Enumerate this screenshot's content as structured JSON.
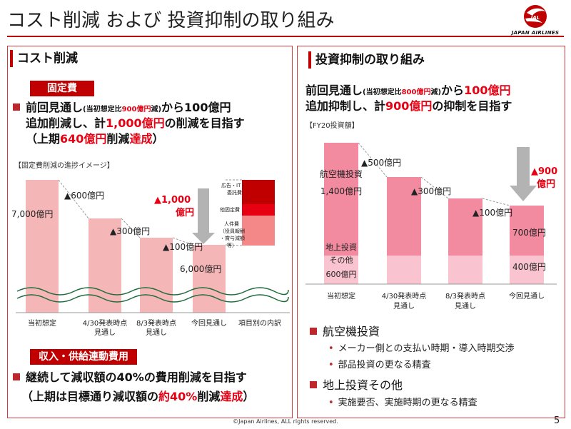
{
  "title": "コスト削減 および 投資抑制の取り組み",
  "logo": {
    "text": "JAPAN AIRLINES",
    "mark": "JAL",
    "color": "#c00000"
  },
  "left": {
    "heading": "コスト削減",
    "fixed_tag": "固定費",
    "line1": {
      "a": "前回見通し",
      "b": "(当初想定比",
      "c": "900億円",
      "d": "減)",
      "e": "から100億円"
    },
    "line2": {
      "a": "追加削減し、計",
      "b": "1,000億円",
      "c": "の削減を目指す"
    },
    "line3": {
      "a": "（上期",
      "b": "640億円",
      "c": "削減",
      "d": "達成",
      "e": "）"
    },
    "chart_caption": "【固定費削減の進捗イメージ】",
    "chart": {
      "bar_labels": [
        "7,000億円",
        "6,000億円"
      ],
      "deltas": [
        "▲600億円",
        "▲300億円",
        "▲100億円"
      ],
      "total": [
        "▲1,000",
        "億円"
      ],
      "categories": [
        "当初想定",
        "4/30発表時点\n見通し",
        "8/3発表時点\n見通し",
        "今回見通し",
        "項目別の内訳"
      ],
      "breakdown": [
        "広告・IT・\n委託費",
        "他固定費",
        "人件費\n（役員報酬\n・賞与減額\n等）"
      ]
    },
    "revenue_tag": "収入・供給連動費用",
    "rev_line1": "継続して減収額の40%の費用削減を目指す",
    "rev_line2": {
      "a": "（上期は目標通り減収額の",
      "b": "約40%",
      "c": "削減",
      "d": "達成",
      "e": "）"
    }
  },
  "right": {
    "heading": "投資抑制の取り組み",
    "line1": {
      "a": "前回見通し",
      "b": "(当初想定比",
      "c": "800億円",
      "d": "減)",
      "e": "から",
      "f": "100億円"
    },
    "line2": {
      "a": "追加抑制し、計",
      "b": "900億円",
      "c": "の抑制を目指す"
    },
    "chart_caption": "【FY20投資額】",
    "chart": {
      "aircraft_label": [
        "航空機投資",
        "1,400億円"
      ],
      "ground_label": [
        "地上投資",
        "その他",
        "600億円"
      ],
      "deltas": [
        "▲500億円",
        "▲300億円",
        "▲100億円"
      ],
      "total": [
        "▲900",
        "億円"
      ],
      "final_labels": [
        "700億円",
        "400億円"
      ],
      "categories": [
        "当初想定",
        "4/30発表時点\n見通し",
        "8/3発表時点\n見通し",
        "今回見通し"
      ]
    },
    "sections": [
      {
        "head": "航空機投資",
        "items": [
          "メーカー側との支払い時期・導入時期交渉",
          "部品投資の更なる精査"
        ]
      },
      {
        "head": "地上投資その他",
        "items": [
          "実施要否、実施時期の更なる精査"
        ]
      }
    ]
  },
  "footer": "©Japan Airlines, ALL rights reserved.",
  "page_number": "5"
}
